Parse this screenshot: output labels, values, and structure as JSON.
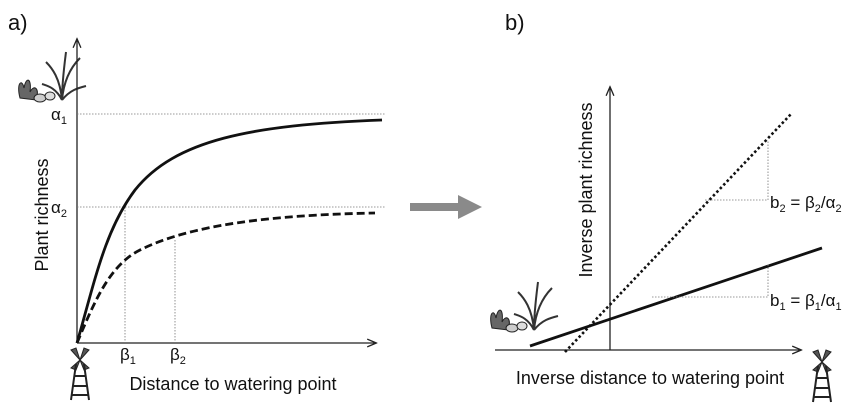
{
  "panels": [
    {
      "tag": "a)",
      "y_axis_label": "Plant richness",
      "x_axis_label": "Distance to watering point",
      "y_levels": [
        [
          "α",
          "1"
        ],
        [
          "α",
          "2"
        ]
      ],
      "x_levels": [
        [
          "β",
          "1"
        ],
        [
          "β",
          "2"
        ]
      ]
    },
    {
      "tag": "b)",
      "y_axis_label": "Inverse plant richness",
      "x_axis_label": "Inverse distance to watering point",
      "slopes": [
        [
          "b",
          "2",
          " = β",
          "2",
          "/α",
          "2"
        ],
        [
          "b",
          "1",
          " = β",
          "1",
          "/α",
          "1"
        ]
      ]
    }
  ]
}
